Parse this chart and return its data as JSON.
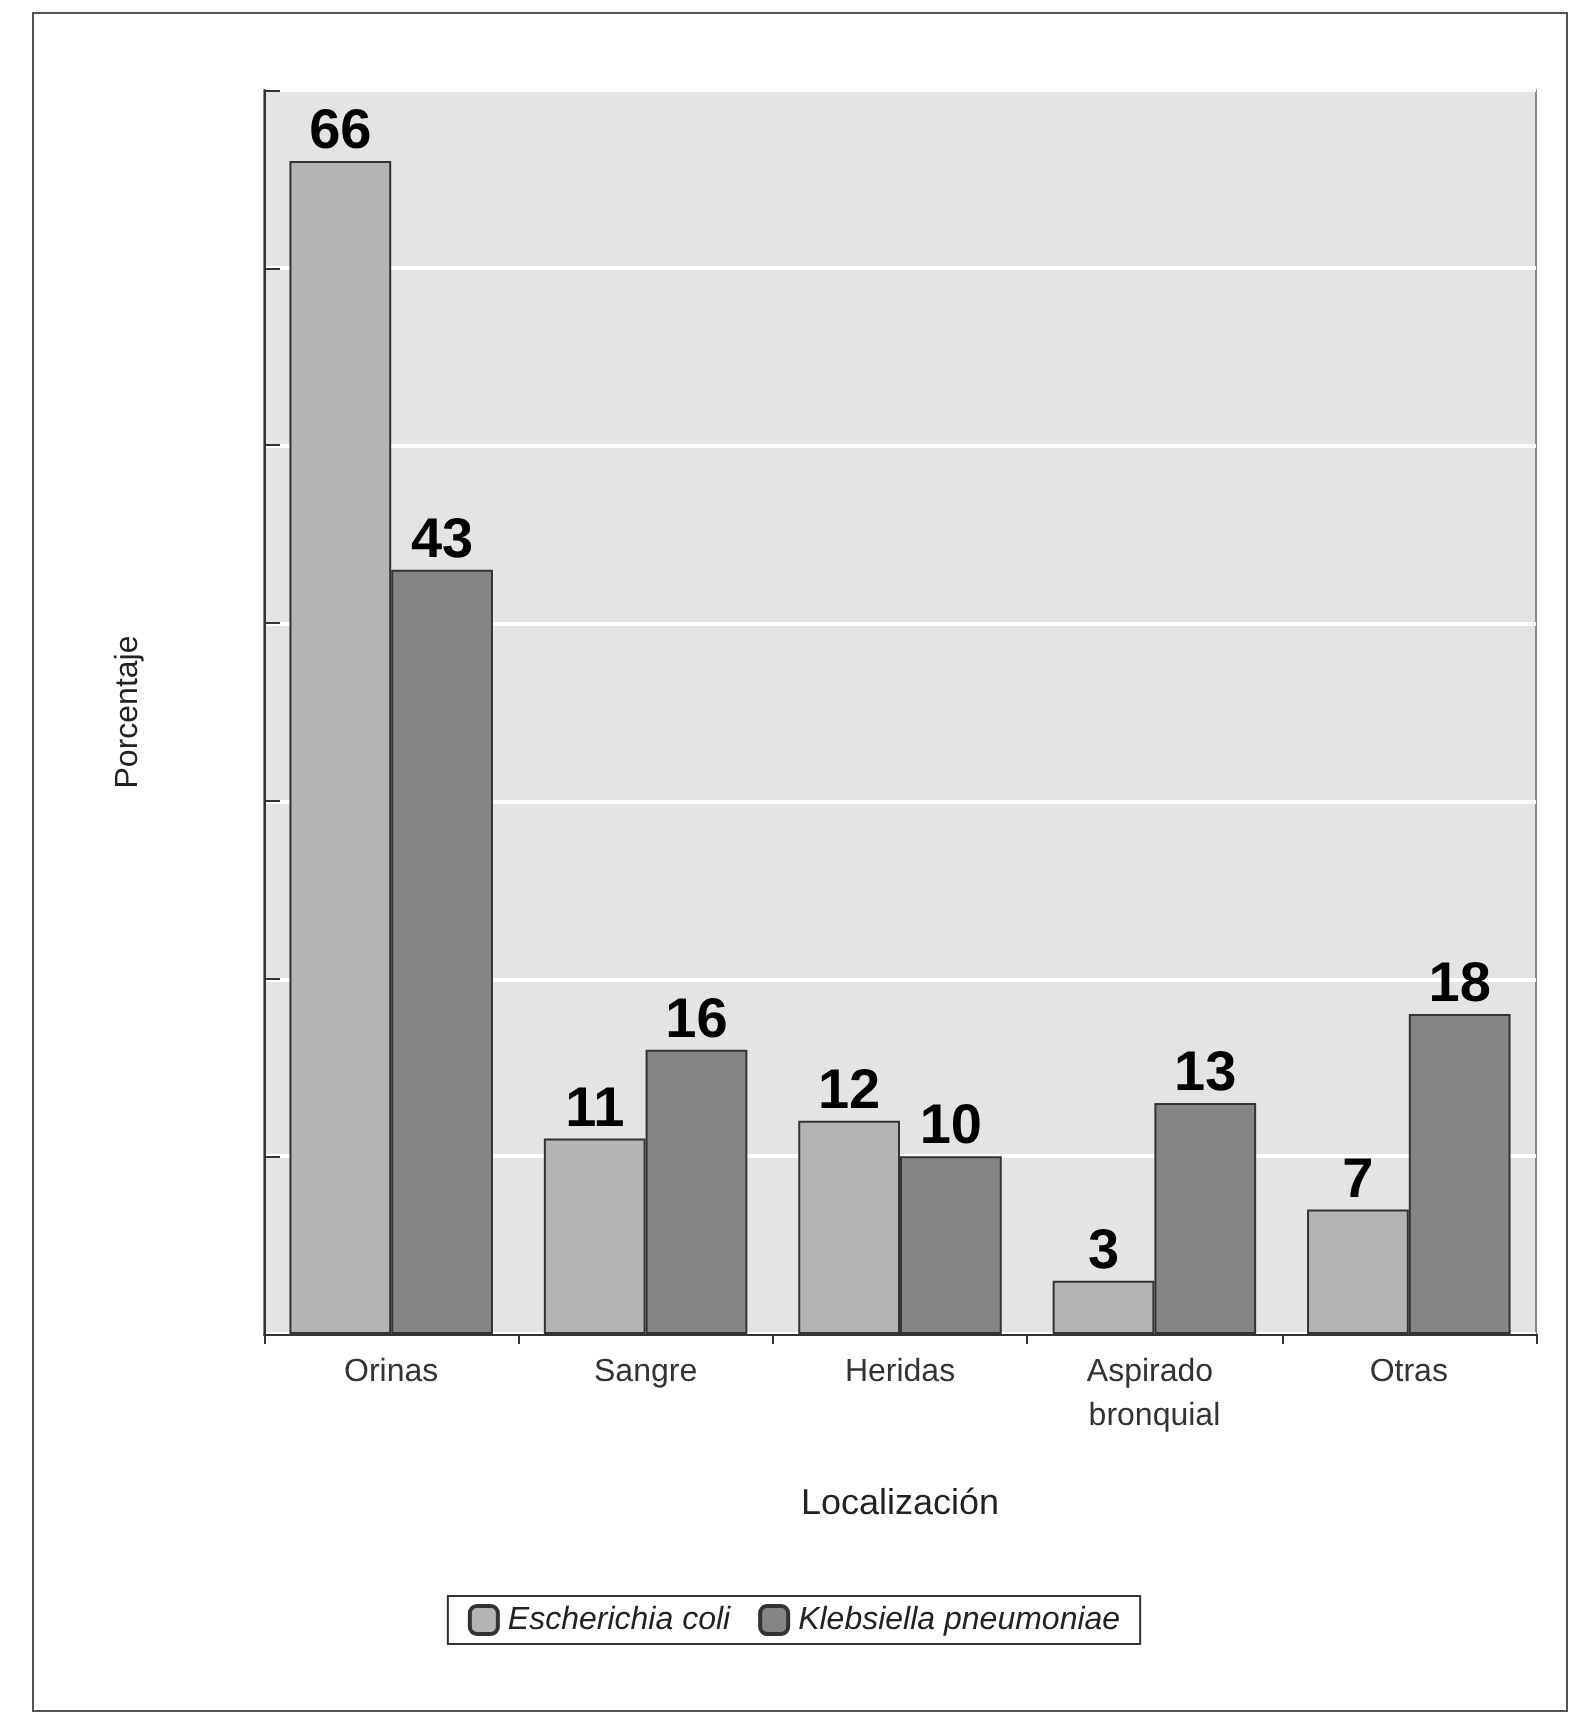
{
  "chart_data": {
    "type": "bar",
    "xlabel": "Localización",
    "ylabel": "Porcentaje",
    "categories": [
      "Orinas",
      "Sangre",
      "Heridas",
      "Aspirado bronquial",
      "Otras"
    ],
    "series": [
      {
        "name": "Escherichia coli",
        "color": "#b4b4b4",
        "values": [
          66,
          11,
          12,
          3,
          7
        ]
      },
      {
        "name": "Klebsiella pneumoniae",
        "color": "#858585",
        "values": [
          43,
          16,
          10,
          13,
          18
        ]
      }
    ],
    "ylim": [
      0,
      70
    ],
    "yticks": [
      {
        "value": 0,
        "label": null
      },
      {
        "value": 10,
        "label": null
      },
      {
        "value": 20,
        "label": null
      },
      {
        "value": 30,
        "label": null
      },
      {
        "value": 40,
        "label": null
      },
      {
        "value": 50,
        "label": null
      },
      {
        "value": 60,
        "label": null
      },
      {
        "value": 70,
        "label": null
      }
    ],
    "tick_labels": "x",
    "grid": "y",
    "legend": "bottom",
    "data_labels": true
  }
}
